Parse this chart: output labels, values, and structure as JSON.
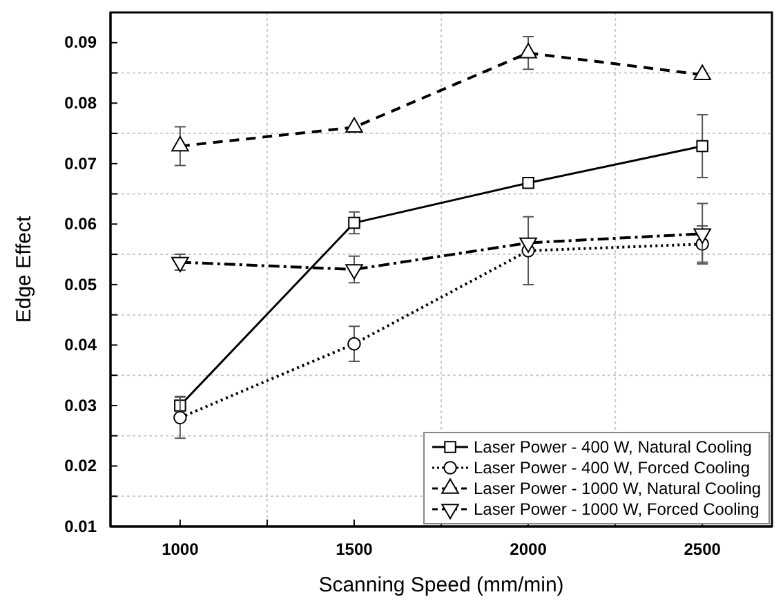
{
  "chart_data": {
    "type": "line",
    "xlabel": "Scanning Speed (mm/min)",
    "ylabel": "Edge Effect",
    "x": [
      1000,
      1500,
      2000,
      2500
    ],
    "xlim": [
      800,
      2700
    ],
    "xticks": [
      1000,
      {
        "value": 1250,
        "label": null
      },
      1500,
      {
        "value": 1750,
        "label": null
      },
      2000,
      {
        "value": 2250,
        "label": null
      },
      2500
    ],
    "ylim": [
      0.01,
      0.095
    ],
    "yticks": [
      0.01,
      {
        "value": 0.015,
        "label": null
      },
      0.02,
      {
        "value": 0.025,
        "label": null
      },
      0.03,
      {
        "value": 0.035,
        "label": null
      },
      0.04,
      {
        "value": 0.045,
        "label": null
      },
      0.05,
      {
        "value": 0.055,
        "label": null
      },
      0.06,
      {
        "value": 0.065,
        "label": null
      },
      0.07,
      {
        "value": 0.075,
        "label": null
      },
      0.08,
      {
        "value": 0.085,
        "label": null
      },
      0.09
    ],
    "grid": true,
    "legend": "bottom right",
    "series": [
      {
        "name": "Laser Power - 400 W, Natural Cooling",
        "color": "#000000",
        "marker": "square",
        "line_style": "solid",
        "values": [
          0.03,
          0.0602,
          0.0668,
          0.0729
        ],
        "errors": [
          0.0015,
          0.0018,
          0.0005,
          0.0052
        ]
      },
      {
        "name": "Laser Power - 400 W, Forced Cooling",
        "color": "#000000",
        "marker": "circle",
        "line_style": "dotted",
        "values": [
          0.028,
          0.0402,
          0.0556,
          0.0567
        ],
        "errors": [
          0.0034,
          0.0029,
          0.0056,
          0.003
        ]
      },
      {
        "name": "Laser Power - 1000 W, Natural Cooling",
        "color": "#000000",
        "marker": "triangle",
        "line_style": "dashed",
        "values": [
          0.0729,
          0.076,
          0.0883,
          0.0847
        ],
        "errors": [
          0.0032,
          null,
          0.0027,
          null
        ]
      },
      {
        "name": "Laser Power - 1000 W, Forced Cooling",
        "color": "#000000",
        "marker": "triangle-down",
        "line_style": "dashdot",
        "values": [
          0.0537,
          0.0525,
          0.0569,
          0.0584
        ],
        "errors": [
          0.0013,
          0.0022,
          null,
          0.005
        ]
      }
    ]
  }
}
